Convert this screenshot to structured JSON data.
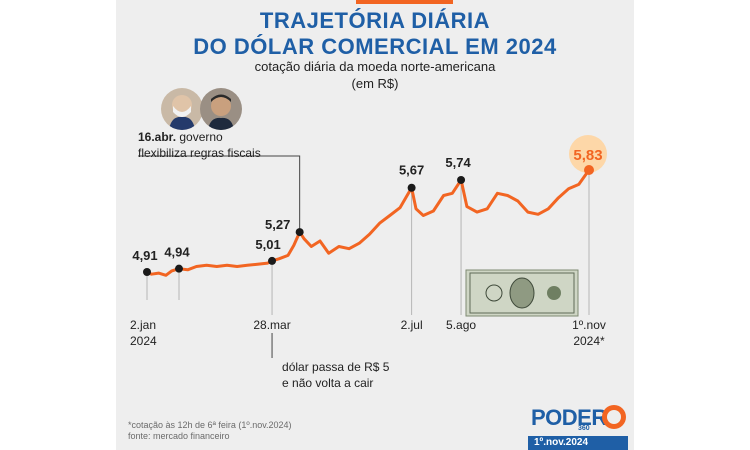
{
  "header": {
    "title_line1": "TRAJETÓRIA DIÁRIA",
    "title_line2": "DO DÓLAR COMERCIAL EM 2024",
    "subtitle_line1": "cotação diária da moeda norte-americana",
    "subtitle_line2": "(em R$)"
  },
  "chart_data": {
    "type": "line",
    "currency": "R$",
    "x_tick_labels": [
      {
        "line1": "2.jan",
        "line2": "2024",
        "date": "2024-01-02"
      },
      {
        "line1": "28.mar",
        "line2": "",
        "date": "2024-03-28"
      },
      {
        "line1": "2.jul",
        "line2": "",
        "date": "2024-07-02"
      },
      {
        "line1": "5.ago",
        "line2": "",
        "date": "2024-08-05"
      },
      {
        "line1": "1º.nov",
        "line2": "2024*",
        "date": "2024-11-01"
      }
    ],
    "labeled_points": [
      {
        "date": "2024-01-02",
        "value": 4.91,
        "label": "4,91"
      },
      {
        "date": "2024-01-24",
        "value": 4.94,
        "label": "4,94"
      },
      {
        "date": "2024-03-28",
        "value": 5.01,
        "label": "5,01"
      },
      {
        "date": "2024-04-16",
        "value": 5.27,
        "label": "5,27"
      },
      {
        "date": "2024-07-02",
        "value": 5.67,
        "label": "5,67"
      },
      {
        "date": "2024-08-05",
        "value": 5.74,
        "label": "5,74"
      },
      {
        "date": "2024-11-01",
        "value": 5.83,
        "label": "5,83",
        "highlight": true
      }
    ],
    "series": [
      {
        "values": [
          [
            "2024-01-02",
            4.91
          ],
          [
            "2024-01-05",
            4.89
          ],
          [
            "2024-01-10",
            4.9
          ],
          [
            "2024-01-15",
            4.88
          ],
          [
            "2024-01-19",
            4.92
          ],
          [
            "2024-01-24",
            4.94
          ],
          [
            "2024-01-30",
            4.93
          ],
          [
            "2024-02-05",
            4.96
          ],
          [
            "2024-02-12",
            4.97
          ],
          [
            "2024-02-19",
            4.96
          ],
          [
            "2024-02-26",
            4.97
          ],
          [
            "2024-03-04",
            4.96
          ],
          [
            "2024-03-11",
            4.97
          ],
          [
            "2024-03-18",
            4.98
          ],
          [
            "2024-03-25",
            4.99
          ],
          [
            "2024-03-28",
            5.01
          ],
          [
            "2024-04-02",
            5.03
          ],
          [
            "2024-04-08",
            5.06
          ],
          [
            "2024-04-12",
            5.15
          ],
          [
            "2024-04-16",
            5.27
          ],
          [
            "2024-04-19",
            5.21
          ],
          [
            "2024-04-24",
            5.14
          ],
          [
            "2024-04-30",
            5.19
          ],
          [
            "2024-05-06",
            5.08
          ],
          [
            "2024-05-13",
            5.14
          ],
          [
            "2024-05-20",
            5.12
          ],
          [
            "2024-05-27",
            5.17
          ],
          [
            "2024-06-03",
            5.25
          ],
          [
            "2024-06-10",
            5.35
          ],
          [
            "2024-06-17",
            5.42
          ],
          [
            "2024-06-24",
            5.49
          ],
          [
            "2024-06-28",
            5.58
          ],
          [
            "2024-07-02",
            5.67
          ],
          [
            "2024-07-05",
            5.48
          ],
          [
            "2024-07-10",
            5.42
          ],
          [
            "2024-07-17",
            5.46
          ],
          [
            "2024-07-24",
            5.6
          ],
          [
            "2024-07-30",
            5.62
          ],
          [
            "2024-08-05",
            5.74
          ],
          [
            "2024-08-09",
            5.5
          ],
          [
            "2024-08-16",
            5.45
          ],
          [
            "2024-08-23",
            5.48
          ],
          [
            "2024-08-30",
            5.62
          ],
          [
            "2024-09-06",
            5.6
          ],
          [
            "2024-09-13",
            5.55
          ],
          [
            "2024-09-20",
            5.45
          ],
          [
            "2024-09-27",
            5.43
          ],
          [
            "2024-10-04",
            5.48
          ],
          [
            "2024-10-11",
            5.58
          ],
          [
            "2024-10-18",
            5.66
          ],
          [
            "2024-10-25",
            5.7
          ],
          [
            "2024-11-01",
            5.83
          ]
        ]
      }
    ]
  },
  "annotations": {
    "abril_bold": "16.abr.",
    "abril_rest": " governo",
    "abril_line2": "flexibiliza regras fiscais",
    "marco_line1": "dólar passa de R$ 5",
    "marco_line2": "e não volta a cair"
  },
  "footer": {
    "note": "*cotação às 12h de 6ª feira (1º.nov.2024)",
    "source": "fonte: mercado financeiro",
    "logo_text": "PODER",
    "logo_number": "360",
    "date_badge": "1º.nov.2024"
  },
  "colors": {
    "line": "#f26522",
    "title": "#1f5fa6",
    "highlight_fill": "#fdd7a8",
    "background": "#eeeeee"
  },
  "icons": [
    "person-photo-lula",
    "person-photo-haddad",
    "dollar-bill-image"
  ]
}
